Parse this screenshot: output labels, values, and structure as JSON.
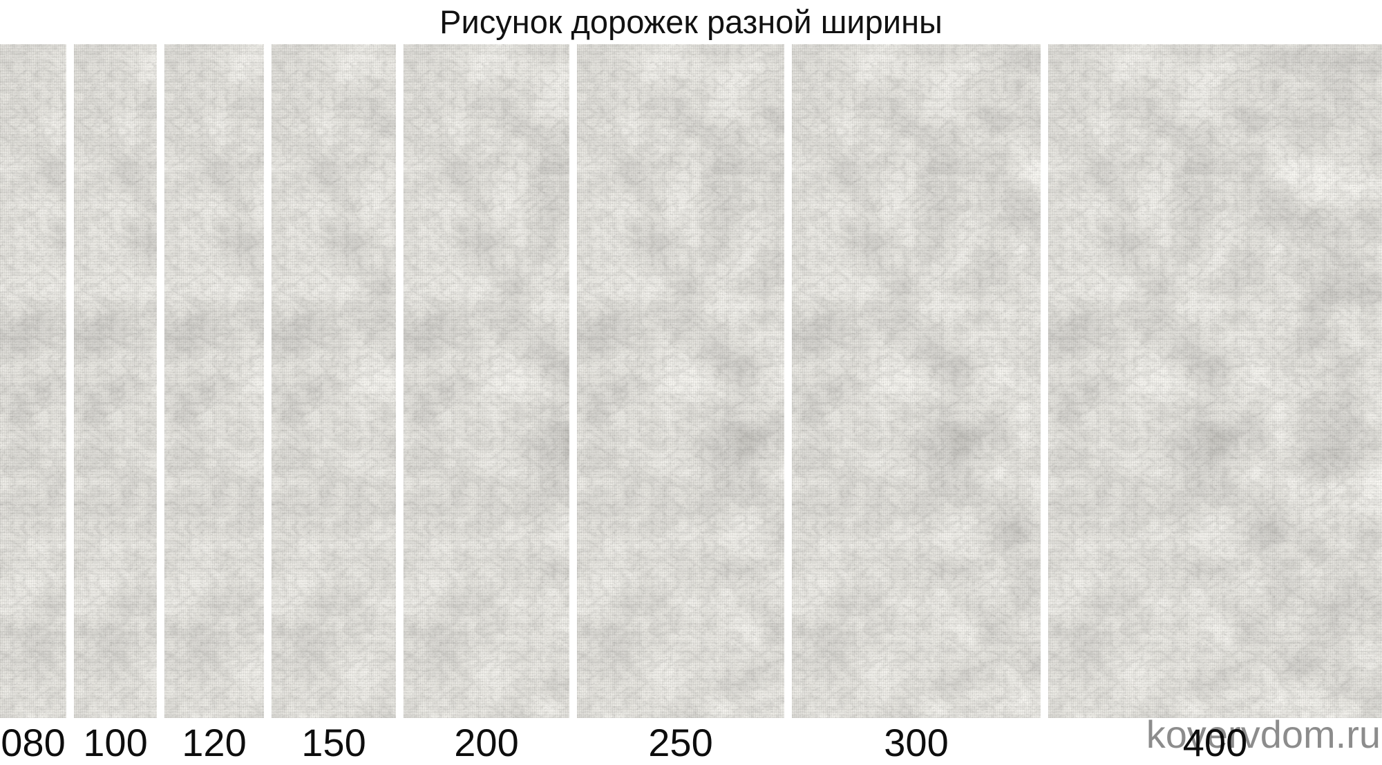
{
  "title": "Рисунок дорожек разной ширины",
  "watermark": "kovervdom.ru",
  "colors": {
    "background": "#ffffff",
    "text": "#111111",
    "watermark_gray": "#8b8b8b",
    "carpet_light": "#dedbd3",
    "carpet_mid": "#b2afa9",
    "carpet_dark": "#88857f"
  },
  "runners": [
    {
      "label": "080",
      "width_cm": 80
    },
    {
      "label": "100",
      "width_cm": 100
    },
    {
      "label": "120",
      "width_cm": 120
    },
    {
      "label": "150",
      "width_cm": 150
    },
    {
      "label": "200",
      "width_cm": 200
    },
    {
      "label": "250",
      "width_cm": 250
    },
    {
      "label": "300",
      "width_cm": 300
    },
    {
      "label": "400",
      "width_cm": 400
    }
  ]
}
